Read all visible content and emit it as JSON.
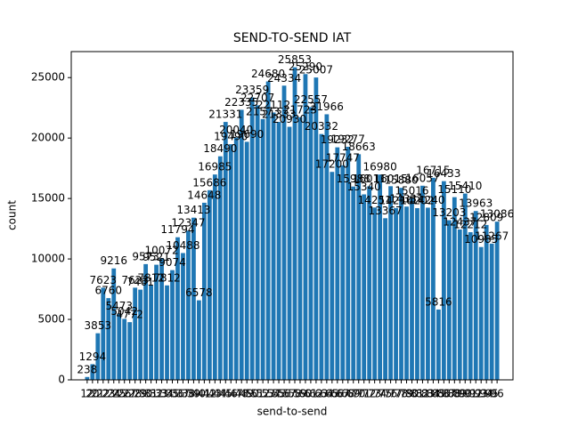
{
  "chart_data": {
    "type": "bar",
    "title": "SEND-TO-SEND IAT",
    "xlabel": "send-to-send",
    "ylabel": "count",
    "color": "#1f77b4",
    "categories": [
      "12",
      "20",
      "21",
      "22",
      "23",
      "24",
      "25",
      "26",
      "27",
      "28",
      "29",
      "30",
      "31",
      "32",
      "33",
      "34",
      "35",
      "36",
      "37",
      "38",
      "39",
      "40",
      "41",
      "42",
      "43",
      "44",
      "45",
      "46",
      "47",
      "48",
      "49",
      "50",
      "51",
      "52",
      "53",
      "54",
      "55",
      "56",
      "57",
      "58",
      "59",
      "60",
      "61",
      "62",
      "63",
      "64",
      "65",
      "66",
      "67",
      "68",
      "69",
      "70",
      "71",
      "72",
      "73",
      "74",
      "75",
      "76",
      "77",
      "78",
      "79",
      "80",
      "81",
      "82",
      "83",
      "84",
      "85",
      "86",
      "87",
      "88",
      "89",
      "90",
      "91",
      "92",
      "93",
      "94",
      "95",
      "96"
    ],
    "values": [
      238,
      1294,
      3853,
      7623,
      6760,
      9216,
      5473,
      5042,
      4772,
      7623,
      7461,
      9573,
      7812,
      9521,
      10072,
      7812,
      9074,
      11794,
      10488,
      12347,
      13413,
      6578,
      14648,
      15686,
      16985,
      18490,
      21331,
      19490,
      20040,
      22335,
      19690,
      23359,
      22707,
      21573,
      24680,
      22112,
      21333,
      24334,
      20930,
      25853,
      21723,
      25290,
      22557,
      25007,
      20332,
      21966,
      17200,
      19232,
      17747,
      19277,
      15988,
      18663,
      15340,
      16011,
      14251,
      16980,
      13367,
      16015,
      14210,
      15880,
      14331,
      15016,
      14202,
      16057,
      14240,
      16715,
      5816,
      16433,
      13203,
      15110,
      12437,
      15410,
      12212,
      13963,
      10985,
      12809,
      11267,
      13086
    ],
    "ylim": [
      0,
      27150
    ],
    "yticks": [
      0,
      5000,
      10000,
      15000,
      20000,
      25000
    ]
  }
}
